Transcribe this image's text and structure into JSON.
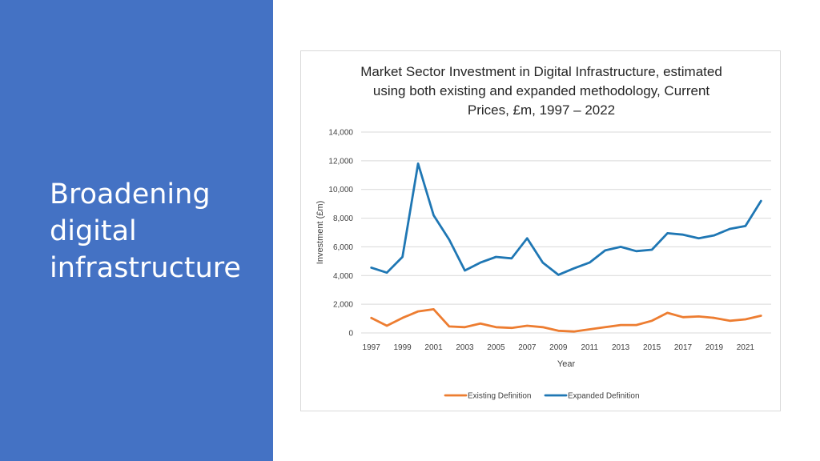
{
  "slide": {
    "title_lines": [
      "Broadening",
      "digital",
      "infrastructure"
    ]
  },
  "colors": {
    "panel": "#4472c4",
    "existing": "#ed7d31",
    "expanded": "#1f77b4",
    "grid": "#d9d9d9"
  },
  "chart_data": {
    "type": "line",
    "title_lines": [
      "Market Sector Investment in Digital Infrastructure, estimated",
      "using both existing and expanded methodology, Current",
      "Prices, £m, 1997 – 2022"
    ],
    "xlabel": "Year",
    "ylabel": "Investment (£m)",
    "ylim": [
      0,
      14000
    ],
    "y_ticks": [
      "0",
      "2,000",
      "4,000",
      "6,000",
      "8,000",
      "10,000",
      "12,000",
      "14,000"
    ],
    "x_tick_labels": [
      "1997",
      "1999",
      "2001",
      "2003",
      "2005",
      "2007",
      "2009",
      "2011",
      "2013",
      "2015",
      "2017",
      "2019",
      "2021"
    ],
    "x": [
      1997,
      1998,
      1999,
      2000,
      2001,
      2002,
      2003,
      2004,
      2005,
      2006,
      2007,
      2008,
      2009,
      2010,
      2011,
      2012,
      2013,
      2014,
      2015,
      2016,
      2017,
      2018,
      2019,
      2020,
      2021,
      2022
    ],
    "grid": "horizontal",
    "legend_position": "bottom",
    "series": [
      {
        "name": "Existing Definition",
        "color": "#ed7d31",
        "values": [
          1050,
          500,
          1050,
          1500,
          1650,
          450,
          400,
          650,
          400,
          350,
          500,
          400,
          150,
          100,
          250,
          400,
          550,
          550,
          850,
          1400,
          1100,
          1150,
          1050,
          850,
          950,
          1200
        ]
      },
      {
        "name": "Expanded Definition",
        "color": "#1f77b4",
        "values": [
          4550,
          4200,
          5300,
          11800,
          8200,
          6500,
          4350,
          4900,
          5300,
          5200,
          6600,
          4900,
          4050,
          4500,
          4900,
          5750,
          6000,
          5700,
          5800,
          6950,
          6850,
          6600,
          6800,
          7250,
          7450,
          9200
        ]
      }
    ]
  }
}
